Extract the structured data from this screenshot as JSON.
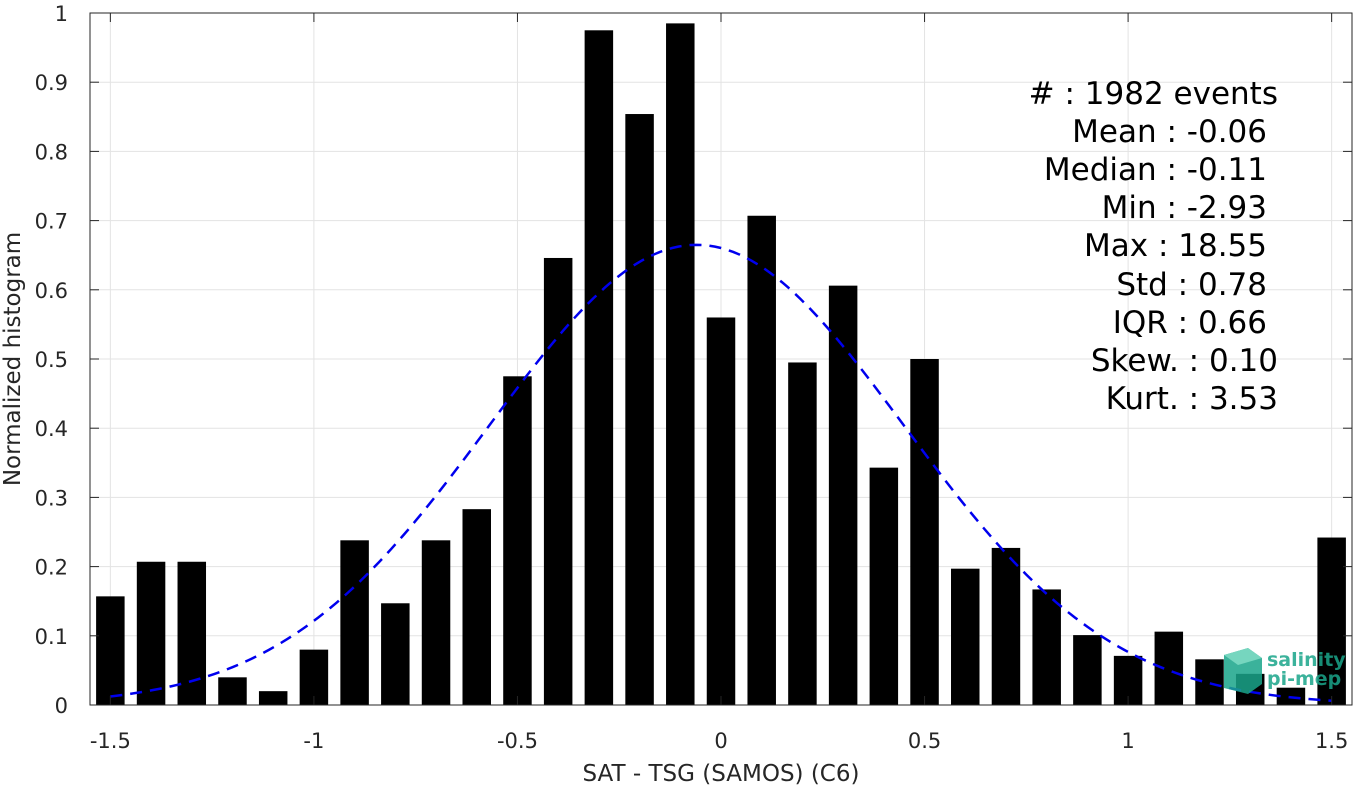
{
  "chart_data": {
    "type": "bar",
    "title": "",
    "xlabel": "SAT - TSG (SAMOS) (C6)",
    "ylabel": "Normalized histogram",
    "xlim": [
      -1.55,
      1.55
    ],
    "ylim": [
      0,
      1
    ],
    "grid": true,
    "bar_width": 0.07,
    "x": [
      -1.5,
      -1.4,
      -1.3,
      -1.2,
      -1.1,
      -1.0,
      -0.9,
      -0.8,
      -0.7,
      -0.6,
      -0.5,
      -0.4,
      -0.3,
      -0.2,
      -0.1,
      0.0,
      0.1,
      0.2,
      0.3,
      0.4,
      0.5,
      0.6,
      0.7,
      0.8,
      0.9,
      1.0,
      1.1,
      1.2,
      1.3,
      1.4,
      1.5
    ],
    "values": [
      0.157,
      0.207,
      0.207,
      0.04,
      0.02,
      0.08,
      0.238,
      0.147,
      0.238,
      0.283,
      0.475,
      0.646,
      0.975,
      0.854,
      0.985,
      0.56,
      0.707,
      0.495,
      0.606,
      0.343,
      0.5,
      0.197,
      0.227,
      0.167,
      0.101,
      0.071,
      0.106,
      0.066,
      0.045,
      0.025,
      0.242
    ],
    "x_ticks": [
      -1.5,
      -1,
      -0.5,
      0,
      0.5,
      1,
      1.5
    ],
    "x_tick_labels": [
      "-1.5",
      "-1",
      "-0.5",
      "0",
      "0.5",
      "1",
      "1.5"
    ],
    "y_ticks": [
      0,
      0.1,
      0.2,
      0.3,
      0.4,
      0.5,
      0.6,
      0.7,
      0.8,
      0.9,
      1
    ],
    "y_tick_labels": [
      "0",
      "0.1",
      "0.2",
      "0.3",
      "0.4",
      "0.5",
      "0.6",
      "0.7",
      "0.8",
      "0.9",
      "1"
    ],
    "bar_color": "#000000",
    "fit_curve": {
      "style": "dashed",
      "color": "#0000ee",
      "type": "gaussian",
      "mean": -0.06,
      "std": 0.51,
      "peak": 0.665,
      "x_range": [
        -1.5,
        1.5
      ]
    },
    "stats": [
      {
        "label": "#  : 1982 events"
      },
      {
        "label": "Mean : -0.06"
      },
      {
        "label": "Median : -0.11"
      },
      {
        "label": "Min : -2.93"
      },
      {
        "label": "Max : 18.55"
      },
      {
        "label": "Std : 0.78"
      },
      {
        "label": "IQR : 0.66"
      },
      {
        "label": "Skew. : 0.10"
      },
      {
        "label": "Kurt. : 3.53"
      }
    ]
  },
  "logo": {
    "line1": "salinity",
    "line2": "pi-mep",
    "color": "#1aa58a"
  }
}
